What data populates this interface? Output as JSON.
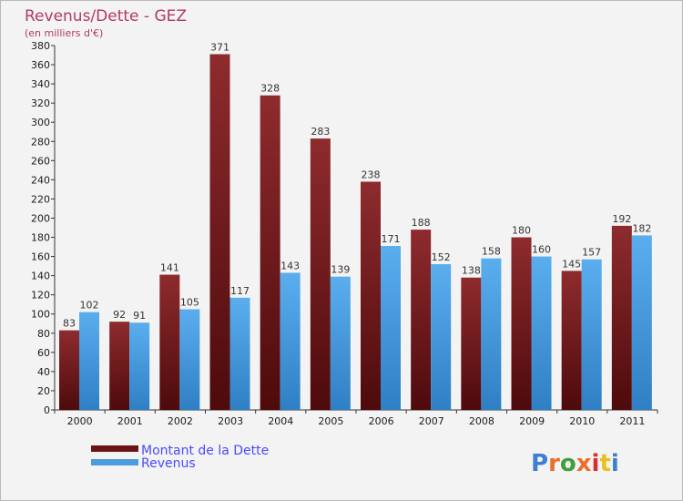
{
  "chart_data": {
    "type": "bar",
    "title": "Revenus/Dette - GEZ",
    "subtitle": "(en milliers d'€)",
    "categories": [
      "2000",
      "2001",
      "2002",
      "2003",
      "2004",
      "2005",
      "2006",
      "2007",
      "2008",
      "2009",
      "2010",
      "2011"
    ],
    "series": [
      {
        "name": "Montant de la Dette",
        "color": "#7a1f22",
        "values": [
          83,
          92,
          141,
          371,
          328,
          283,
          238,
          188,
          138,
          180,
          145,
          192
        ]
      },
      {
        "name": "Revenus",
        "color": "#4a9be0",
        "values": [
          102,
          91,
          105,
          117,
          143,
          139,
          171,
          152,
          158,
          160,
          157,
          182
        ]
      }
    ],
    "ylim": [
      0,
      380
    ],
    "ytick_step": 20,
    "grid": false,
    "legend": "bottom-left"
  },
  "branding": {
    "logo_text": "Proxiti",
    "letter_colors": [
      "#3f7fcf",
      "#e8702a",
      "#3f9f3f",
      "#e8702a",
      "#d62f2f",
      "#e8c020",
      "#3f7fcf"
    ]
  }
}
